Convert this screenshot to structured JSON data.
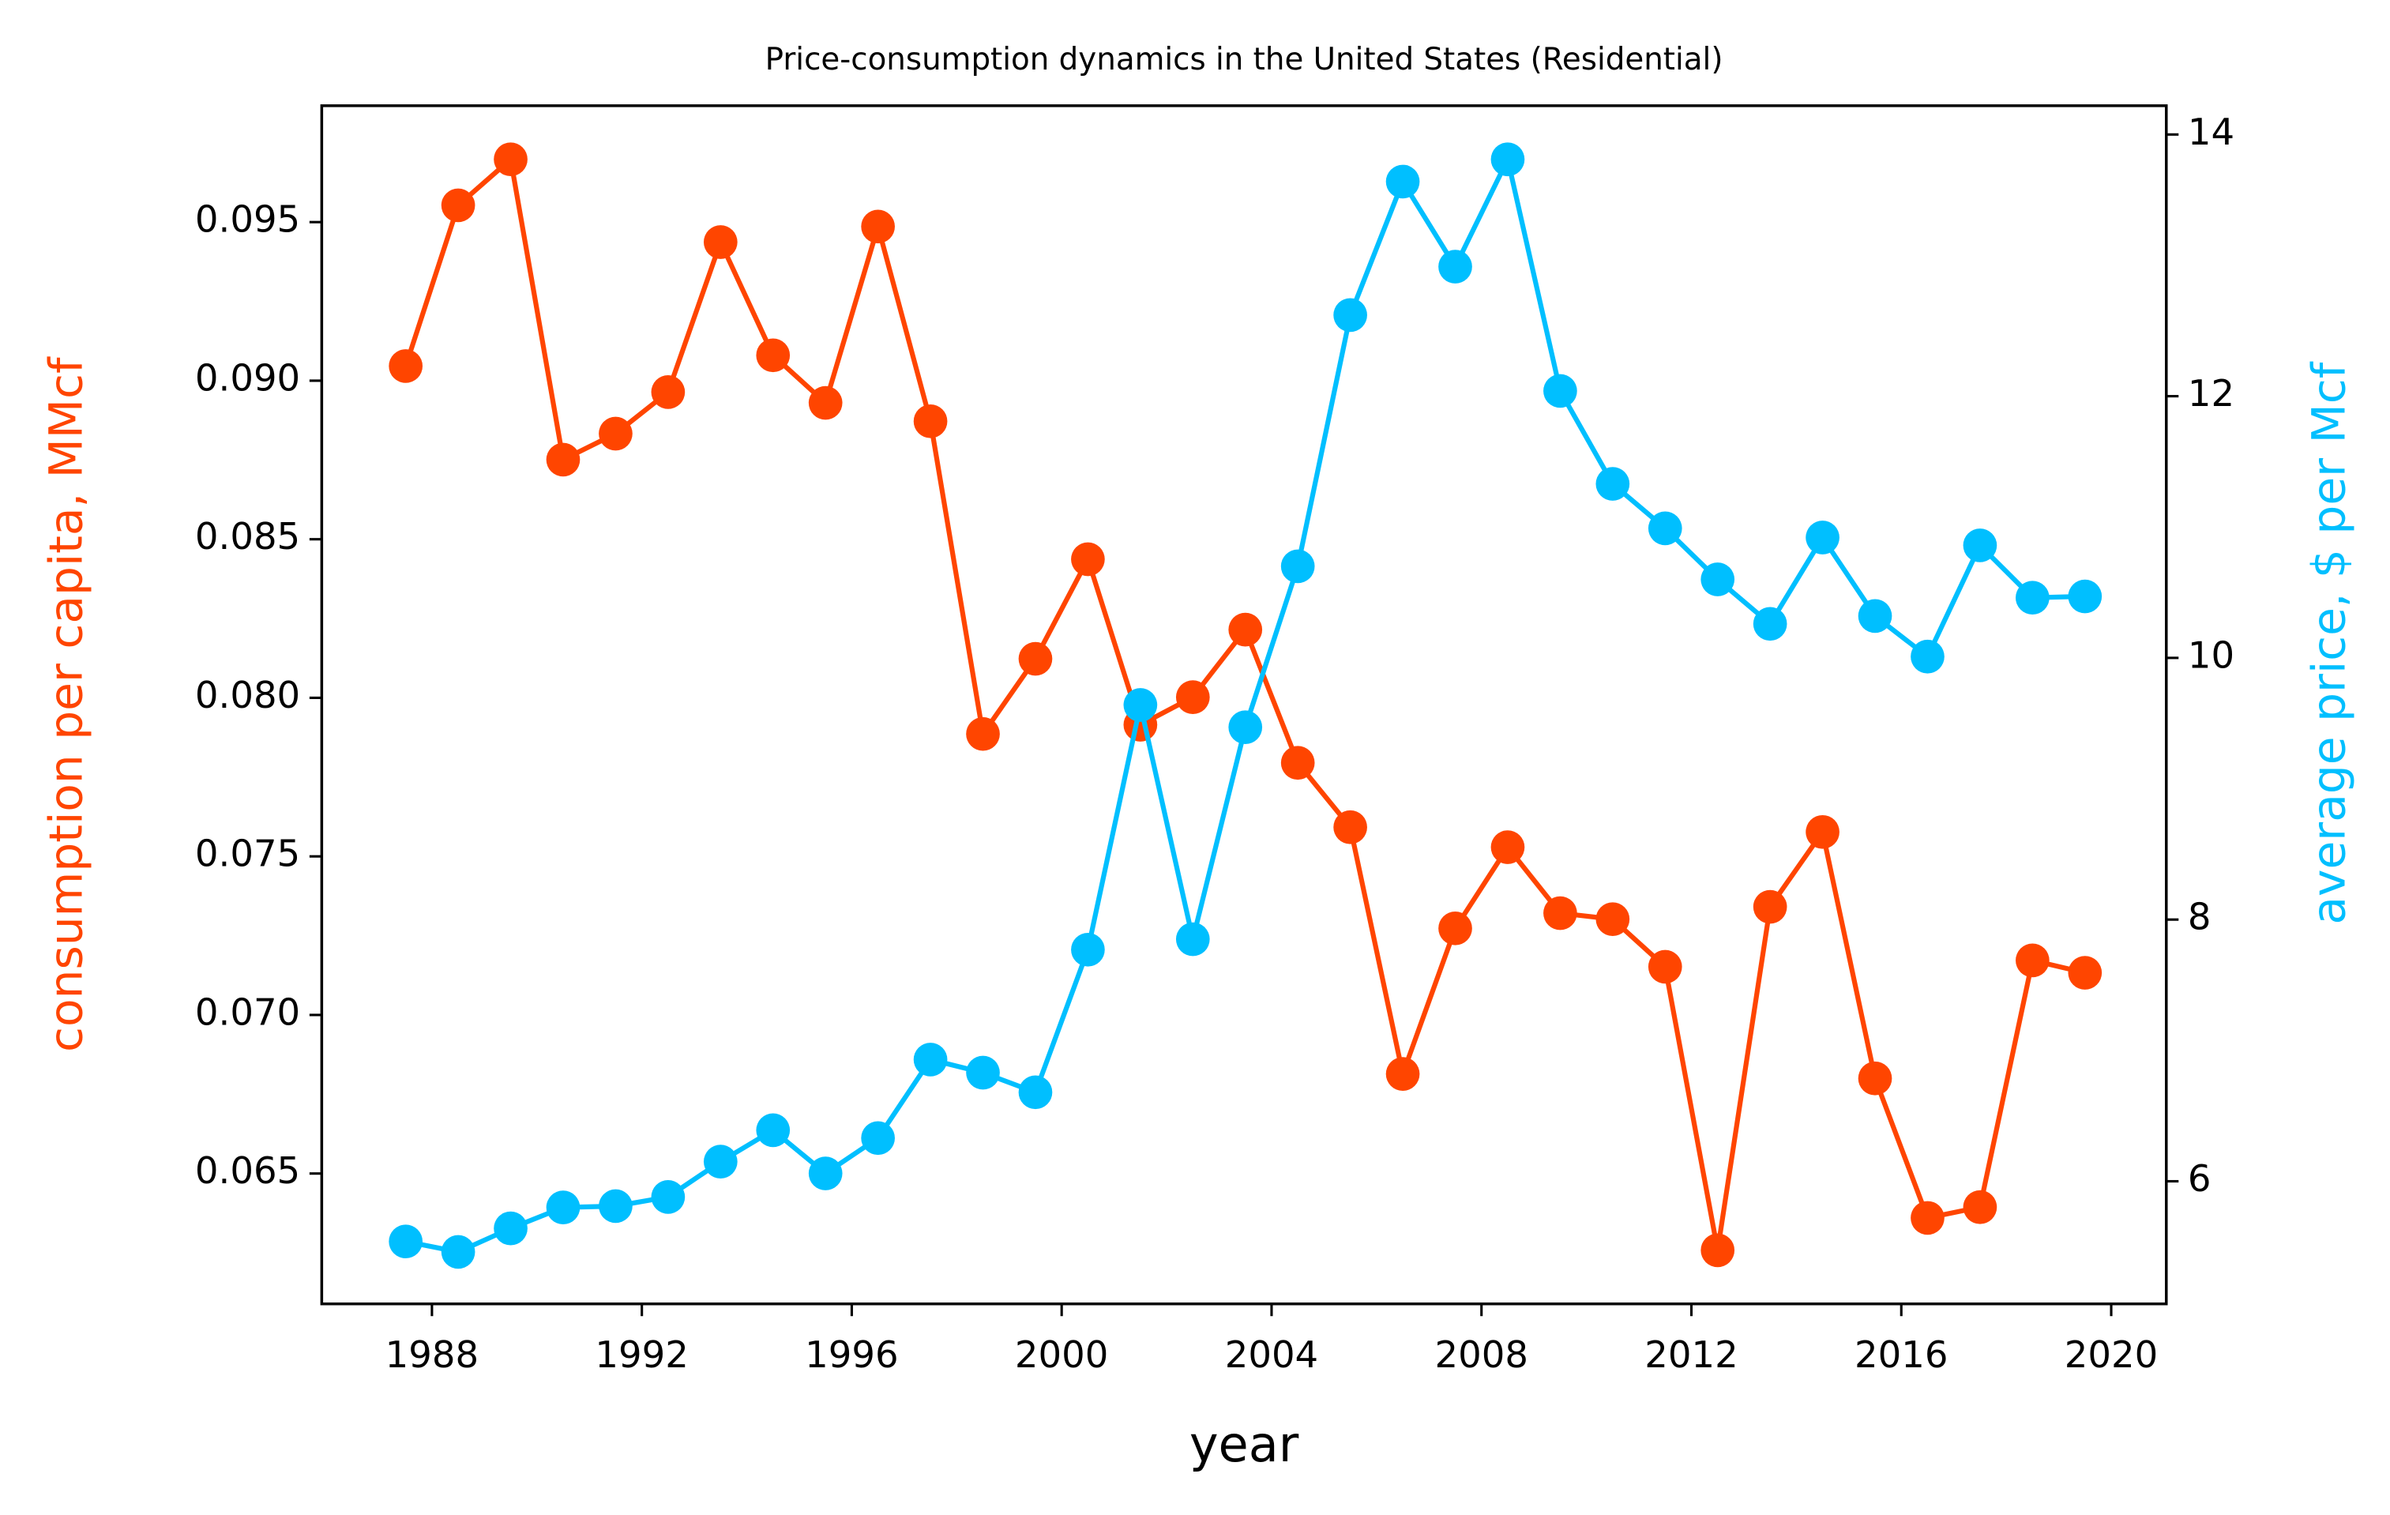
{
  "chart_data": {
    "type": "line",
    "title": "Price-consumption dynamics in the United States (Residential)",
    "xlabel": "year",
    "ylabel": "consumption per capita, MMcf",
    "y2label": "average price, $ per Mcf",
    "x": [
      1987.5,
      1988.5,
      1989.5,
      1990.5,
      1991.5,
      1992.5,
      1993.5,
      1994.5,
      1995.5,
      1996.5,
      1997.5,
      1998.5,
      1999.5,
      2000.5,
      2001.5,
      2002.5,
      2003.5,
      2004.5,
      2005.5,
      2006.5,
      2007.5,
      2008.5,
      2009.5,
      2010.5,
      2011.5,
      2012.5,
      2013.5,
      2014.5,
      2015.5,
      2016.5,
      2017.5,
      2018.5,
      2019.5
    ],
    "series": [
      {
        "name": "consumption per capita, MMcf",
        "color": "#ff4500",
        "axis": "y",
        "values": [
          0.09046,
          0.09553,
          0.09698,
          0.08751,
          0.08833,
          0.08964,
          0.09437,
          0.0908,
          0.0893,
          0.09486,
          0.08872,
          0.07886,
          0.08123,
          0.08437,
          0.07915,
          0.08002,
          0.08215,
          0.07795,
          0.07592,
          0.06814,
          0.07273,
          0.07529,
          0.07321,
          0.07302,
          0.07152,
          0.06258,
          0.07341,
          0.07577,
          0.068,
          0.0636,
          0.06394,
          0.07172,
          0.07133
        ]
      },
      {
        "name": "average price, $ per Mcf",
        "color": "#00bfff",
        "axis": "y2",
        "values": [
          5.54,
          5.46,
          5.64,
          5.8,
          5.81,
          5.88,
          6.15,
          6.39,
          6.06,
          6.33,
          6.93,
          6.83,
          6.68,
          7.77,
          9.64,
          7.85,
          9.47,
          10.7,
          12.62,
          13.64,
          12.99,
          13.81,
          12.04,
          11.33,
          10.99,
          10.6,
          10.26,
          10.92,
          10.32,
          10.01,
          10.86,
          10.46,
          10.47
        ]
      }
    ],
    "xlim": [
      1985.9,
      2021.05
    ],
    "xticks": [
      1988,
      1992,
      1996,
      2000,
      2004,
      2008,
      2012,
      2016,
      2020
    ],
    "ylim": [
      0.06089,
      0.09867
    ],
    "yticks": [
      0.065,
      {
        "value": 0.07,
        "label": "0.070"
      },
      0.075,
      {
        "value": 0.08,
        "label": "0.080"
      },
      0.085,
      {
        "value": 0.09,
        "label": "0.090"
      },
      0.095
    ],
    "y2lim": [
      5.063,
      14.22
    ],
    "y2ticks": [
      6,
      8,
      10,
      12,
      14
    ],
    "grid": false
  }
}
